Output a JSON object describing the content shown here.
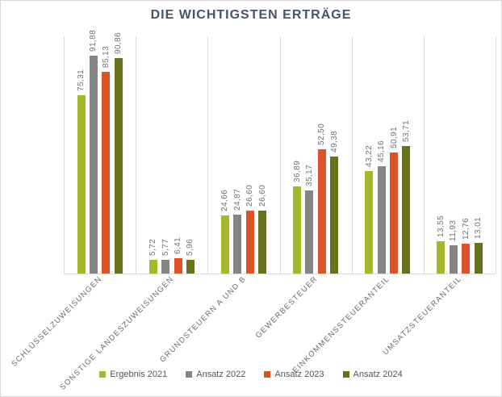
{
  "title": "DIE WICHTIGSTEN ERTRÄGE",
  "colors": {
    "grid": "#d9d9d9",
    "title_text": "#44546a",
    "value_label_text": "#6b7078",
    "category_label_text": "#6b6b6b"
  },
  "chart_data": {
    "type": "bar",
    "title": "DIE WICHTIGSTEN ERTRÄGE",
    "categories": [
      "SCHLÜSSELZUWEISUNGEN",
      "SONSTIGE LANDESZUWEISUNGEN",
      "GRUNDSTEUERN A UND B",
      "GEWERBESTEUER",
      "EINKOMMENSSTEUERANTEIL",
      "UMSATZSTEUERANTEIL"
    ],
    "series": [
      {
        "name": "Ergebnis 2021",
        "color": "#a6b72b",
        "values": [
          75.31,
          5.72,
          24.66,
          36.89,
          43.22,
          13.55
        ],
        "labels": [
          "75,31",
          "5,72",
          "24,66",
          "36,89",
          "43,22",
          "13,55"
        ]
      },
      {
        "name": "Ansatz 2022",
        "color": "#848484",
        "values": [
          91.88,
          5.77,
          24.87,
          35.17,
          45.16,
          11.93
        ],
        "labels": [
          "91,88",
          "5,77",
          "24,87",
          "35,17",
          "45,16",
          "11,93"
        ]
      },
      {
        "name": "Ansatz 2023",
        "color": "#dc5327",
        "values": [
          85.13,
          6.41,
          26.6,
          52.5,
          50.91,
          12.76
        ],
        "labels": [
          "85,13",
          "6,41",
          "26,60",
          "52,50",
          "50,91",
          "12,76"
        ]
      },
      {
        "name": "Ansatz 2024",
        "color": "#6a711c",
        "values": [
          90.86,
          5.96,
          26.6,
          49.38,
          53.71,
          13.01
        ],
        "labels": [
          "90,86",
          "5,96",
          "26,60",
          "49,38",
          "53,71",
          "13,01"
        ]
      }
    ],
    "ylim": [
      0,
      100
    ],
    "grid": "vertical category separators only, no y-axis labels",
    "value_labels": "above bars, rotated 90°, comma decimal separator",
    "category_labels": "rotated 45°",
    "legend_position": "bottom"
  }
}
